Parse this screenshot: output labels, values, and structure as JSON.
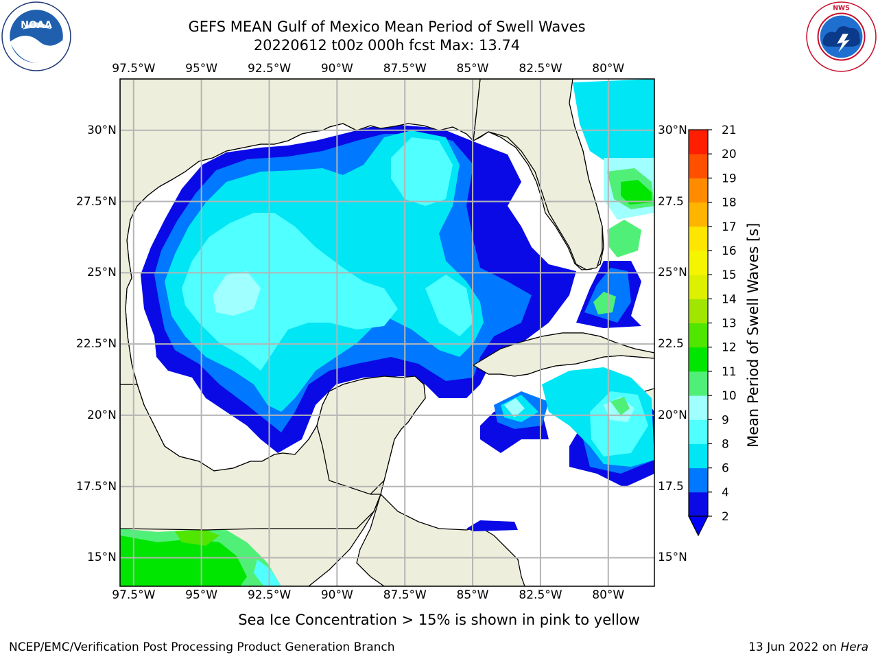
{
  "header": {
    "title_line1": "GEFS MEAN Gulf of Mexico Mean Period of Swell Waves",
    "title_line2": "20220612 t00z 000h fcst   Max: 13.74"
  },
  "logos": {
    "left": "NOAA",
    "left_ring_text": "NATIONAL OCEANIC AND ATMOSPHERIC ADMINISTRATION · U.S. DEPARTMENT OF COMMERCE",
    "right_ring_text": "NATIONAL WEATHER SERVICE"
  },
  "map": {
    "lon_labels_top": [
      "97.5°W",
      "95°W",
      "92.5°W",
      "90°W",
      "87.5°W",
      "85°W",
      "82.5°W",
      "80°W"
    ],
    "lon_labels_bottom": [
      "97.5°W",
      "95°W",
      "92.5°W",
      "90°W",
      "87.5°W",
      "85°W",
      "82.5°W",
      "80°W"
    ],
    "lat_labels_left": [
      "30°N",
      "27.5°N",
      "25°N",
      "22.5°N",
      "20°N",
      "17.5°N",
      "15°N"
    ],
    "lat_labels_right": [
      "30°N",
      "27.5",
      "25°N",
      "22.5",
      "20°N",
      "17.5",
      "15°N"
    ],
    "lon_values": [
      -97.5,
      -95,
      -92.5,
      -90,
      -87.5,
      -85,
      -82.5,
      -80
    ],
    "lat_values": [
      30,
      27.5,
      25,
      22.5,
      20,
      17.5,
      15
    ],
    "extent": {
      "lon_min": -98.0,
      "lon_max": -78.3,
      "lat_min": 14.0,
      "lat_max": 31.8
    },
    "colors": {
      "land": "#eeeedc",
      "ocean_no_data": "#ffffff",
      "grid": "#b4b4b4",
      "coast": "#000000"
    }
  },
  "colorbar": {
    "label": "Mean Period of Swell Waves [s]",
    "ticks": [
      "2",
      "4",
      "6",
      "8",
      "9",
      "10",
      "11",
      "12",
      "13",
      "14",
      "15",
      "16",
      "17",
      "18",
      "19",
      "20",
      "21"
    ],
    "colors": [
      "#0a0ae6",
      "#0078ff",
      "#00e6f5",
      "#50ffff",
      "#a0ffff",
      "#50f078",
      "#00e600",
      "#50e600",
      "#a0e600",
      "#dcf000",
      "#f5f500",
      "#ffe600",
      "#ffb400",
      "#ff8c00",
      "#ff5000",
      "#ff1e00"
    ],
    "extend_color": "#0000ff"
  },
  "caption": "Sea Ice Concentration > 15% is shown in pink to yellow",
  "footer": {
    "left": "NCEP/EMC/Verification Post Processing Product Generation Branch",
    "right_date": "13 Jun 2022 on ",
    "right_host": "Hera"
  }
}
